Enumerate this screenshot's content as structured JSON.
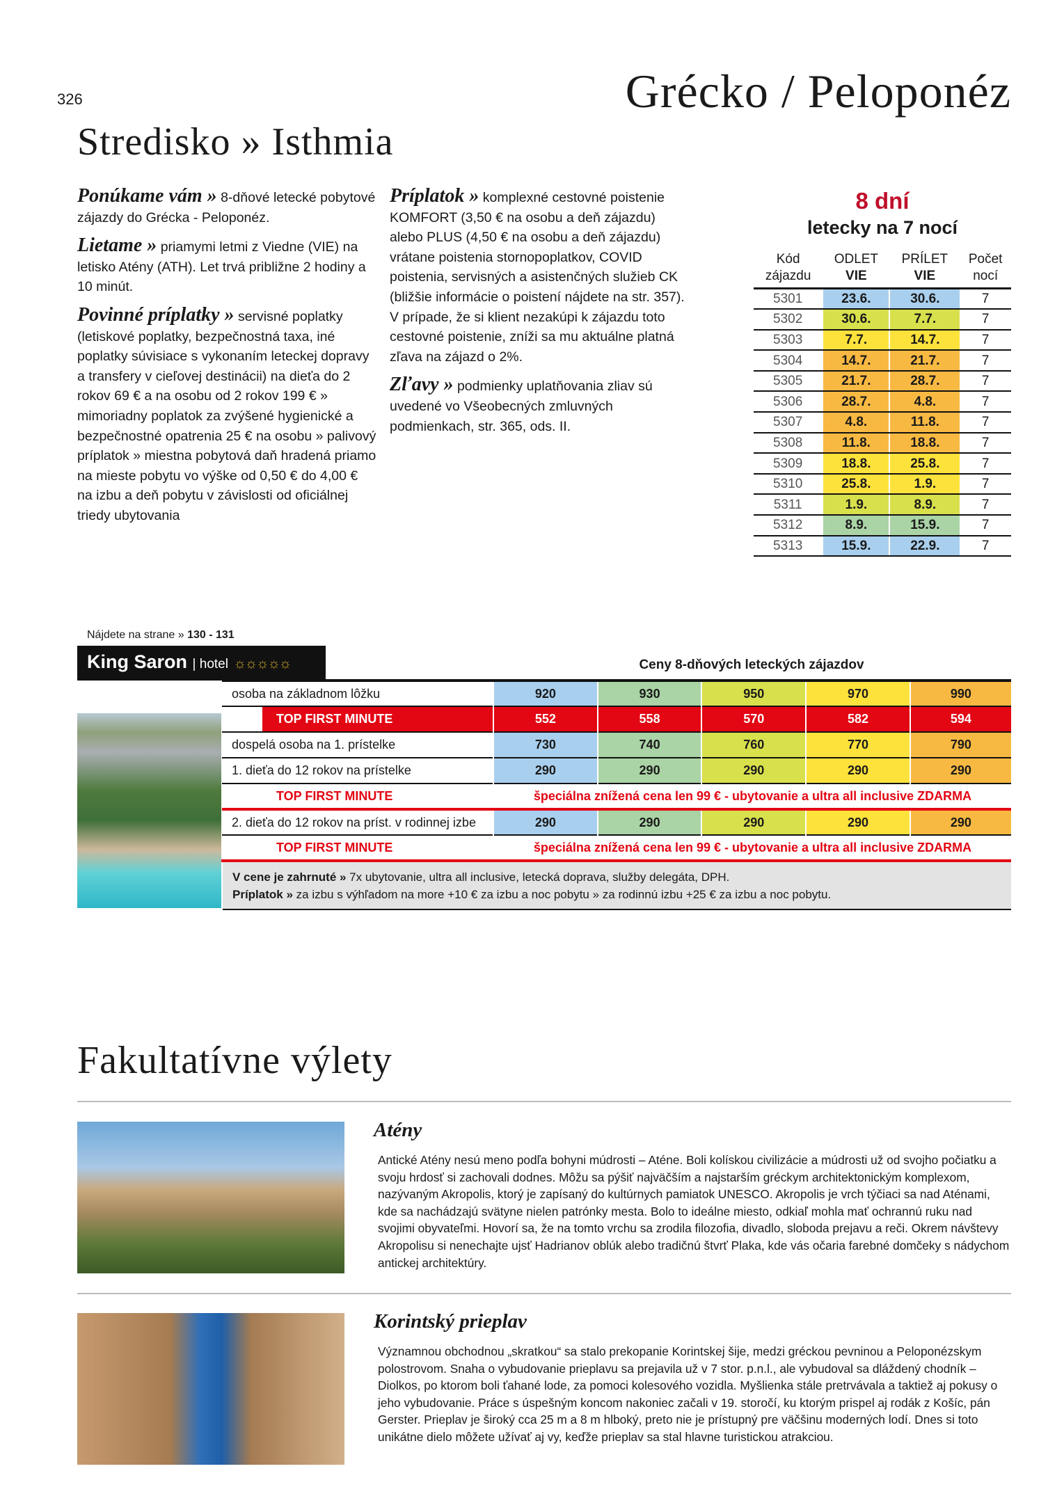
{
  "page_number": "326",
  "region_title": "Grécko / Peloponéz",
  "resort_title": "Stredisko » Isthmia",
  "info": [
    {
      "lead": "Ponúkame vám »",
      "text": " 8-dňové letecké pobytové zájazdy do Grécka - Peloponéz."
    },
    {
      "lead": "Lietame »",
      "text": " priamymi letmi z Viedne (VIE) na letisko Atény (ATH). Let trvá približne 2 hodiny a 10 minút."
    },
    {
      "lead": "Povinné príplatky »",
      "text": " servisné poplatky (letiskové poplatky, bezpečnostná taxa, iné poplatky súvisiace s vykonaním leteckej dopravy a transfery v cieľovej destinácii) na dieťa do 2 rokov 69 € a na osobu od 2 rokov 199 € » mimoriadny poplatok za zvýšené hygienické a bezpečnostné opatrenia 25 € na osobu » palivový príplatok » miestna pobytová daň hradená priamo na mieste pobytu vo výške od 0,50 € do 4,00 € na izbu a deň pobytu v závislosti od oficiálnej triedy ubytovania"
    },
    {
      "lead": "Príplatok »",
      "text": " komplexné cestovné poistenie KOMFORT (3,50 € na osobu a deň zájazdu) alebo PLUS (4,50 € na osobu a deň zájazdu) vrátane poistenia stornopoplatkov, COVID poistenia, servisných a asistenčných služieb CK (bližšie informácie o poistení nájdete na str. 357). V prípade, že si klient nezakúpi k zájazdu toto cestovné poistenie, zníži sa mu aktuálne platná zľava na zájazd o 2%."
    },
    {
      "lead": "Zľavy »",
      "text": " podmienky uplatňovania zliav sú uvedené vo Všeobecných zmluvných podmienkach, str. 365, ods. II."
    }
  ],
  "schedule": {
    "days": "8 dní",
    "subtitle": "letecky na 7 nocí",
    "headers": [
      [
        "Kód",
        "zájazdu"
      ],
      [
        "ODLET",
        "VIE"
      ],
      [
        "PRÍLET",
        "VIE"
      ],
      [
        "Počet",
        "nocí"
      ]
    ],
    "rows": [
      [
        "5301",
        "23.6.",
        "30.6.",
        "7",
        "blue"
      ],
      [
        "5302",
        "30.6.",
        "7.7.",
        "7",
        "lime"
      ],
      [
        "5303",
        "7.7.",
        "14.7.",
        "7",
        "yellow"
      ],
      [
        "5304",
        "14.7.",
        "21.7.",
        "7",
        "orange"
      ],
      [
        "5305",
        "21.7.",
        "28.7.",
        "7",
        "orange"
      ],
      [
        "5306",
        "28.7.",
        "4.8.",
        "7",
        "orange"
      ],
      [
        "5307",
        "4.8.",
        "11.8.",
        "7",
        "orange"
      ],
      [
        "5308",
        "11.8.",
        "18.8.",
        "7",
        "orange"
      ],
      [
        "5309",
        "18.8.",
        "25.8.",
        "7",
        "yellow"
      ],
      [
        "5310",
        "25.8.",
        "1.9.",
        "7",
        "yellow"
      ],
      [
        "5311",
        "1.9.",
        "8.9.",
        "7",
        "lime"
      ],
      [
        "5312",
        "8.9.",
        "15.9.",
        "7",
        "green"
      ],
      [
        "5313",
        "15.9.",
        "22.9.",
        "7",
        "blue"
      ]
    ]
  },
  "colors": {
    "blue": "#a9cfee",
    "green": "#aad3a6",
    "lime": "#d8e04c",
    "yellow": "#fde23c",
    "orange": "#f8b942",
    "red": "#e30613",
    "title_red": "#c0102a"
  },
  "hotel": {
    "find_label": "Nájdete na strane » ",
    "find_pages": "130 - 131",
    "name": "King Saron",
    "type": "hotel",
    "stars": "☼☼☼☼☼",
    "price_title": "Ceny 8-dňových leteckých zájazdov",
    "column_colors": [
      "blue",
      "green",
      "lime",
      "yellow",
      "orange"
    ],
    "rows": [
      {
        "label": "osoba na základnom lôžku",
        "values": [
          "920",
          "930",
          "950",
          "970",
          "990"
        ]
      },
      {
        "label": "TOP FIRST MINUTE",
        "values": [
          "552",
          "558",
          "570",
          "582",
          "594"
        ],
        "kind": "tfm"
      },
      {
        "label": "dospelá osoba na 1. prístelke",
        "values": [
          "730",
          "740",
          "760",
          "770",
          "790"
        ]
      },
      {
        "label": "1. dieťa do 12 rokov na prístelke",
        "values": [
          "290",
          "290",
          "290",
          "290",
          "290"
        ]
      },
      {
        "label": "TOP FIRST MINUTE",
        "special": "špeciálna znížená cena len 99 € - ubytovanie a ultra all inclusive ZDARMA",
        "kind": "sp"
      },
      {
        "label": "2. dieťa do 12 rokov na príst. v rodinnej izbe",
        "values": [
          "290",
          "290",
          "290",
          "290",
          "290"
        ]
      },
      {
        "label": "TOP FIRST MINUTE",
        "special": "špeciálna znížená cena len 99 € - ubytovanie a ultra all inclusive ZDARMA",
        "kind": "sp"
      }
    ],
    "included_label": "V cene je zahrnuté »",
    "included_text": " 7x ubytovanie, ultra all inclusive, letecká doprava, služby delegáta, DPH.",
    "surcharge_label": "Príplatok »",
    "surcharge_text": " za izbu s výhľadom na more +10 € za izbu a noc pobytu » za rodinnú izbu +25 € za izbu a noc pobytu."
  },
  "excursions": {
    "title": "Fakultatívne výlety",
    "items": [
      {
        "title": "Atény",
        "text": "Antické Atény nesú meno podľa bohyni múdrosti – Aténe. Boli kolískou civilizácie a múdrosti už od svojho počiatku a svoju hrdosť si zachovali dodnes. Môžu sa pýšiť najväčším a najstarším gréckym architektonickým komplexom, nazývaným Akropolis, ktorý je zapísaný do kultúrnych pamiatok UNESCO. Akropolis je vrch týčiaci sa nad Aténami, kde sa nachádzajú svätyne nielen patrónky mesta. Bolo to ideálne miesto, odkiaľ mohla mať ochrannú ruku nad svojimi obyvateľmi. Hovorí sa, že na tomto vrchu sa zrodila filozofia, divadlo, sloboda prejavu a reči. Okrem návštevy Akropolisu si nenechajte ujsť Hadrianov oblúk alebo tradičnú štvrť Plaka, kde vás očaria farebné domčeky s nádychom antickej architektúry."
      },
      {
        "title": "Korintský prieplav",
        "text": "Významnou obchodnou „skratkou“ sa stalo prekopanie Korintskej šije, medzi gréckou pevninou a Peloponézskym polostrovom. Snaha o vybudovanie prieplavu sa prejavila už v 7 stor. p.n.l., ale vybudoval sa dláždený chodník – Diolkos, po ktorom boli ťahané lode, za pomoci kolesového vozidla. Myšlienka stále pretrvávala a taktiež aj pokusy o jeho vybudovanie. Práce s úspešným koncom nakoniec začali v 19. storočí, ku ktorým prispel aj rodák z Košíc, pán Gerster. Prieplav je široký cca 25 m a 8 m hlboký, preto nie je prístupný pre väčšinu moderných lodí. Dnes si toto unikátne dielo môžete užívať aj vy, keďže prieplav sa stal hlavne turistickou atrakciou."
      }
    ]
  }
}
